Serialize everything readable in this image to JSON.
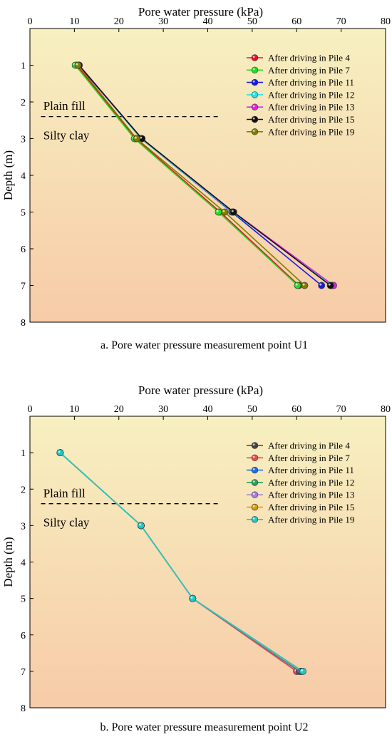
{
  "chart_data": [
    {
      "type": "line",
      "caption": "a. Pore water pressure measurement point U1",
      "xlabel": "Pore water pressure (kPa)",
      "ylabel": "Depth (m)",
      "xlim": [
        0,
        80
      ],
      "ylim": [
        8,
        0
      ],
      "x_ticks": [
        0,
        10,
        20,
        30,
        40,
        50,
        60,
        70,
        80
      ],
      "y_ticks": [
        1,
        2,
        3,
        4,
        5,
        6,
        7,
        8
      ],
      "legend_position": "top-right",
      "background_gradient": [
        "#f7f0c0",
        "#f7cba8"
      ],
      "annotations": [
        {
          "text": "Plain fill",
          "x": 3,
          "y": 2.1
        },
        {
          "text": "Silty clay",
          "x": 3,
          "y": 2.9
        }
      ],
      "boundary_depth": 2.4,
      "series": [
        {
          "name": "After driving in Pile 4",
          "color": "#e8102a",
          "x": [
            10.5,
            23.8,
            42.8,
            60.5
          ],
          "y": [
            1,
            3,
            5,
            7
          ]
        },
        {
          "name": "After driving in Pile 7",
          "color": "#22dd22",
          "x": [
            10.2,
            23.5,
            42.4,
            60.2
          ],
          "y": [
            1,
            3,
            5,
            7
          ]
        },
        {
          "name": "After driving in Pile 11",
          "color": "#1a1ae6",
          "x": [
            11.0,
            25.0,
            45.4,
            65.6
          ],
          "y": [
            1,
            3,
            5,
            7
          ]
        },
        {
          "name": "After driving in Pile 12",
          "color": "#22e6e6",
          "x": [
            11.0,
            25.0,
            45.6,
            68.0
          ],
          "y": [
            1,
            3,
            5,
            7
          ]
        },
        {
          "name": "After driving in Pile 13",
          "color": "#dd22dd",
          "x": [
            11.1,
            25.2,
            45.8,
            68.3
          ],
          "y": [
            1,
            3,
            5,
            7
          ]
        },
        {
          "name": "After driving in Pile 15",
          "color": "#111111",
          "x": [
            11.0,
            25.2,
            45.8,
            67.6
          ],
          "y": [
            1,
            3,
            5,
            7
          ]
        },
        {
          "name": "After driving in Pile 19",
          "color": "#7f7f00",
          "x": [
            10.8,
            24.0,
            43.8,
            61.8
          ],
          "y": [
            1,
            3,
            5,
            7
          ]
        }
      ]
    },
    {
      "type": "line",
      "caption": "b. Pore water pressure measurement point U2",
      "xlabel": "Pore water pressure (kPa)",
      "ylabel": "Depth (m)",
      "xlim": [
        0,
        80
      ],
      "ylim": [
        8,
        0
      ],
      "x_ticks": [
        0,
        10,
        20,
        30,
        40,
        50,
        60,
        70,
        80
      ],
      "y_ticks": [
        1,
        2,
        3,
        4,
        5,
        6,
        7,
        8
      ],
      "legend_position": "top-right",
      "background_gradient": [
        "#f7f0c0",
        "#f7cba8"
      ],
      "annotations": [
        {
          "text": "Plain fill",
          "x": 3,
          "y": 2.1
        },
        {
          "text": "Silty clay",
          "x": 3,
          "y": 2.9
        }
      ],
      "boundary_depth": 2.4,
      "series": [
        {
          "name": "After driving in Pile 4",
          "color": "#444444",
          "x": [
            6.8,
            25.0,
            36.6,
            60.0
          ],
          "y": [
            1,
            3,
            5,
            7
          ]
        },
        {
          "name": "After driving in Pile 7",
          "color": "#e84c4c",
          "x": [
            6.8,
            25.0,
            36.6,
            60.0
          ],
          "y": [
            1,
            3,
            5,
            7
          ]
        },
        {
          "name": "After driving in Pile 11",
          "color": "#1c6ee8",
          "x": [
            6.8,
            25.0,
            36.6,
            60.6
          ],
          "y": [
            1,
            3,
            5,
            7
          ]
        },
        {
          "name": "After driving in Pile 12",
          "color": "#2aa05a",
          "x": [
            6.8,
            25.0,
            36.6,
            60.8
          ],
          "y": [
            1,
            3,
            5,
            7
          ]
        },
        {
          "name": "After driving in Pile 13",
          "color": "#a77fdd",
          "x": [
            6.8,
            25.0,
            36.6,
            61.0
          ],
          "y": [
            1,
            3,
            5,
            7
          ]
        },
        {
          "name": "After driving in Pile 15",
          "color": "#d99a10",
          "x": [
            6.8,
            25.0,
            36.6,
            61.2
          ],
          "y": [
            1,
            3,
            5,
            7
          ]
        },
        {
          "name": "After driving in Pile 19",
          "color": "#1fc8c8",
          "x": [
            6.8,
            25.0,
            36.6,
            61.4
          ],
          "y": [
            1,
            3,
            5,
            7
          ]
        }
      ]
    }
  ]
}
